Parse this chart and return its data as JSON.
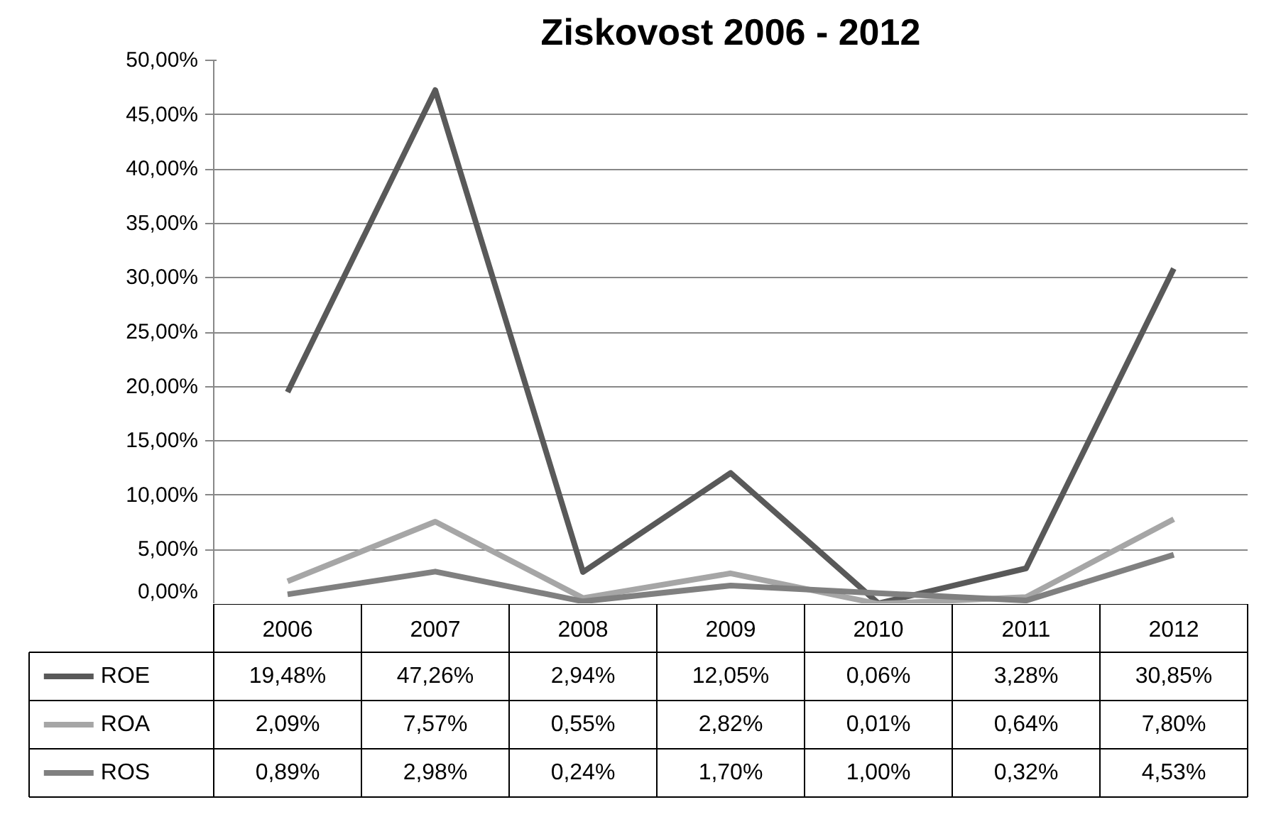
{
  "chart_data": {
    "type": "line",
    "title": "Ziskovost 2006 - 2012",
    "categories": [
      "2006",
      "2007",
      "2008",
      "2009",
      "2010",
      "2011",
      "2012"
    ],
    "ylim": [
      0,
      50
    ],
    "yticks": [
      {
        "value": 0,
        "label": "0,00%"
      },
      {
        "value": 5,
        "label": "5,00%"
      },
      {
        "value": 10,
        "label": "10,00%"
      },
      {
        "value": 15,
        "label": "15,00%"
      },
      {
        "value": 20,
        "label": "20,00%"
      },
      {
        "value": 25,
        "label": "25,00%"
      },
      {
        "value": 30,
        "label": "30,00%"
      },
      {
        "value": 35,
        "label": "35,00%"
      },
      {
        "value": 40,
        "label": "40,00%"
      },
      {
        "value": 45,
        "label": "45,00%"
      },
      {
        "value": 50,
        "label": "50,00%"
      }
    ],
    "grid": "y",
    "legend": "bottom",
    "marker": "none",
    "line_style": "solid",
    "series": [
      {
        "name": "ROE",
        "color": "#595959",
        "values": [
          19.48,
          47.26,
          2.94,
          12.05,
          0.06,
          3.28,
          30.85
        ],
        "value_labels": [
          "19,48%",
          "47,26%",
          "2,94%",
          "12,05%",
          "0,06%",
          "3,28%",
          "30,85%"
        ]
      },
      {
        "name": "ROA",
        "color": "#a6a6a6",
        "values": [
          2.09,
          7.57,
          0.55,
          2.82,
          0.01,
          0.64,
          7.8
        ],
        "value_labels": [
          "2,09%",
          "7,57%",
          "0,55%",
          "2,82%",
          "0,01%",
          "0,64%",
          "7,80%"
        ]
      },
      {
        "name": "ROS",
        "color": "#808080",
        "values": [
          0.89,
          2.98,
          0.24,
          1.7,
          1.0,
          0.32,
          4.53
        ],
        "value_labels": [
          "0,89%",
          "2,98%",
          "0,24%",
          "1,70%",
          "1,00%",
          "0,32%",
          "4,53%"
        ]
      }
    ]
  }
}
